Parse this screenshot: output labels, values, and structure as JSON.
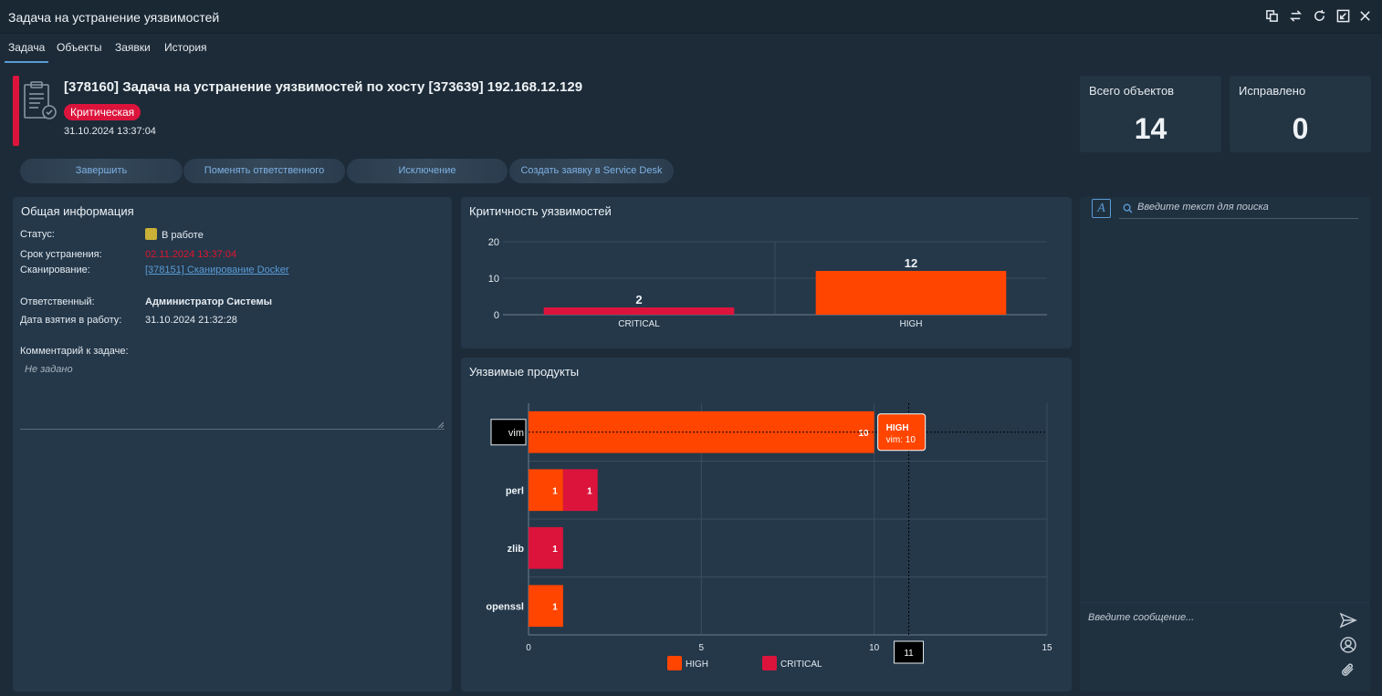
{
  "window": {
    "title": "Задача на устранение уязвимостей"
  },
  "tabs": [
    {
      "label": "Задача",
      "active": true
    },
    {
      "label": "Объекты"
    },
    {
      "label": "Заявки"
    },
    {
      "label": "История"
    }
  ],
  "task": {
    "title": "[378160] Задача на устранение уязвимостей  по хосту [373639] 192.168.12.129",
    "severity": "Критическая",
    "created": "31.10.2024 13:37:04"
  },
  "stats": {
    "total_label": "Всего объектов",
    "total_value": "14",
    "fixed_label": "Исправлено",
    "fixed_value": "0"
  },
  "actions": {
    "finish": "Завершить",
    "change_owner": "Поменять ответственного",
    "exclusion": "Исключение",
    "service_desk": "Создать заявку в Service Desk"
  },
  "info": {
    "panel_title": "Общая информация",
    "status_label": "Статус:",
    "status_value": "В работе",
    "deadline_label": "Срок устранения:",
    "deadline_value": "02.11.2024 13:37:04",
    "scan_label": "Сканирование:",
    "scan_value": "[378151] Сканирование Docker",
    "owner_label": "Ответственный:",
    "owner_value": "Администратор Системы",
    "taken_label": "Дата взятия в работу:",
    "taken_value": "31.10.2024 21:32:28",
    "comment_label": "Комментарий к задаче:",
    "comment_value": "Не задано"
  },
  "chart_data": [
    {
      "type": "bar",
      "title": "Критичность уязвимостей",
      "categories": [
        "CRITICAL",
        "HIGH"
      ],
      "values": [
        2,
        12
      ],
      "colors": [
        "#dc143c",
        "#ff4500"
      ],
      "ylim": [
        0,
        20
      ],
      "yticks": [
        "0",
        "10",
        "20"
      ],
      "grid": true
    },
    {
      "type": "bar",
      "orientation": "horizontal",
      "stacked": true,
      "title": "Уязвимые продукты",
      "categories": [
        "vim",
        "perl",
        "zlib",
        "openssl"
      ],
      "series": [
        {
          "name": "HIGH",
          "color": "#ff4500",
          "values": [
            10,
            1,
            0,
            1
          ]
        },
        {
          "name": "CRITICAL",
          "color": "#dc143c",
          "values": [
            0,
            1,
            1,
            0
          ]
        }
      ],
      "xlim": [
        0,
        15
      ],
      "xticks": [
        "0",
        "5",
        "10",
        "15"
      ],
      "legend": "bottom",
      "tooltip": {
        "series": "HIGH",
        "text": "vim: 10",
        "category": "vim"
      },
      "cursor_label": "11"
    }
  ],
  "chat": {
    "search_placeholder": "Введите текст для поиска",
    "message_placeholder": "Введите сообщение...",
    "font_icon_label": "A"
  }
}
